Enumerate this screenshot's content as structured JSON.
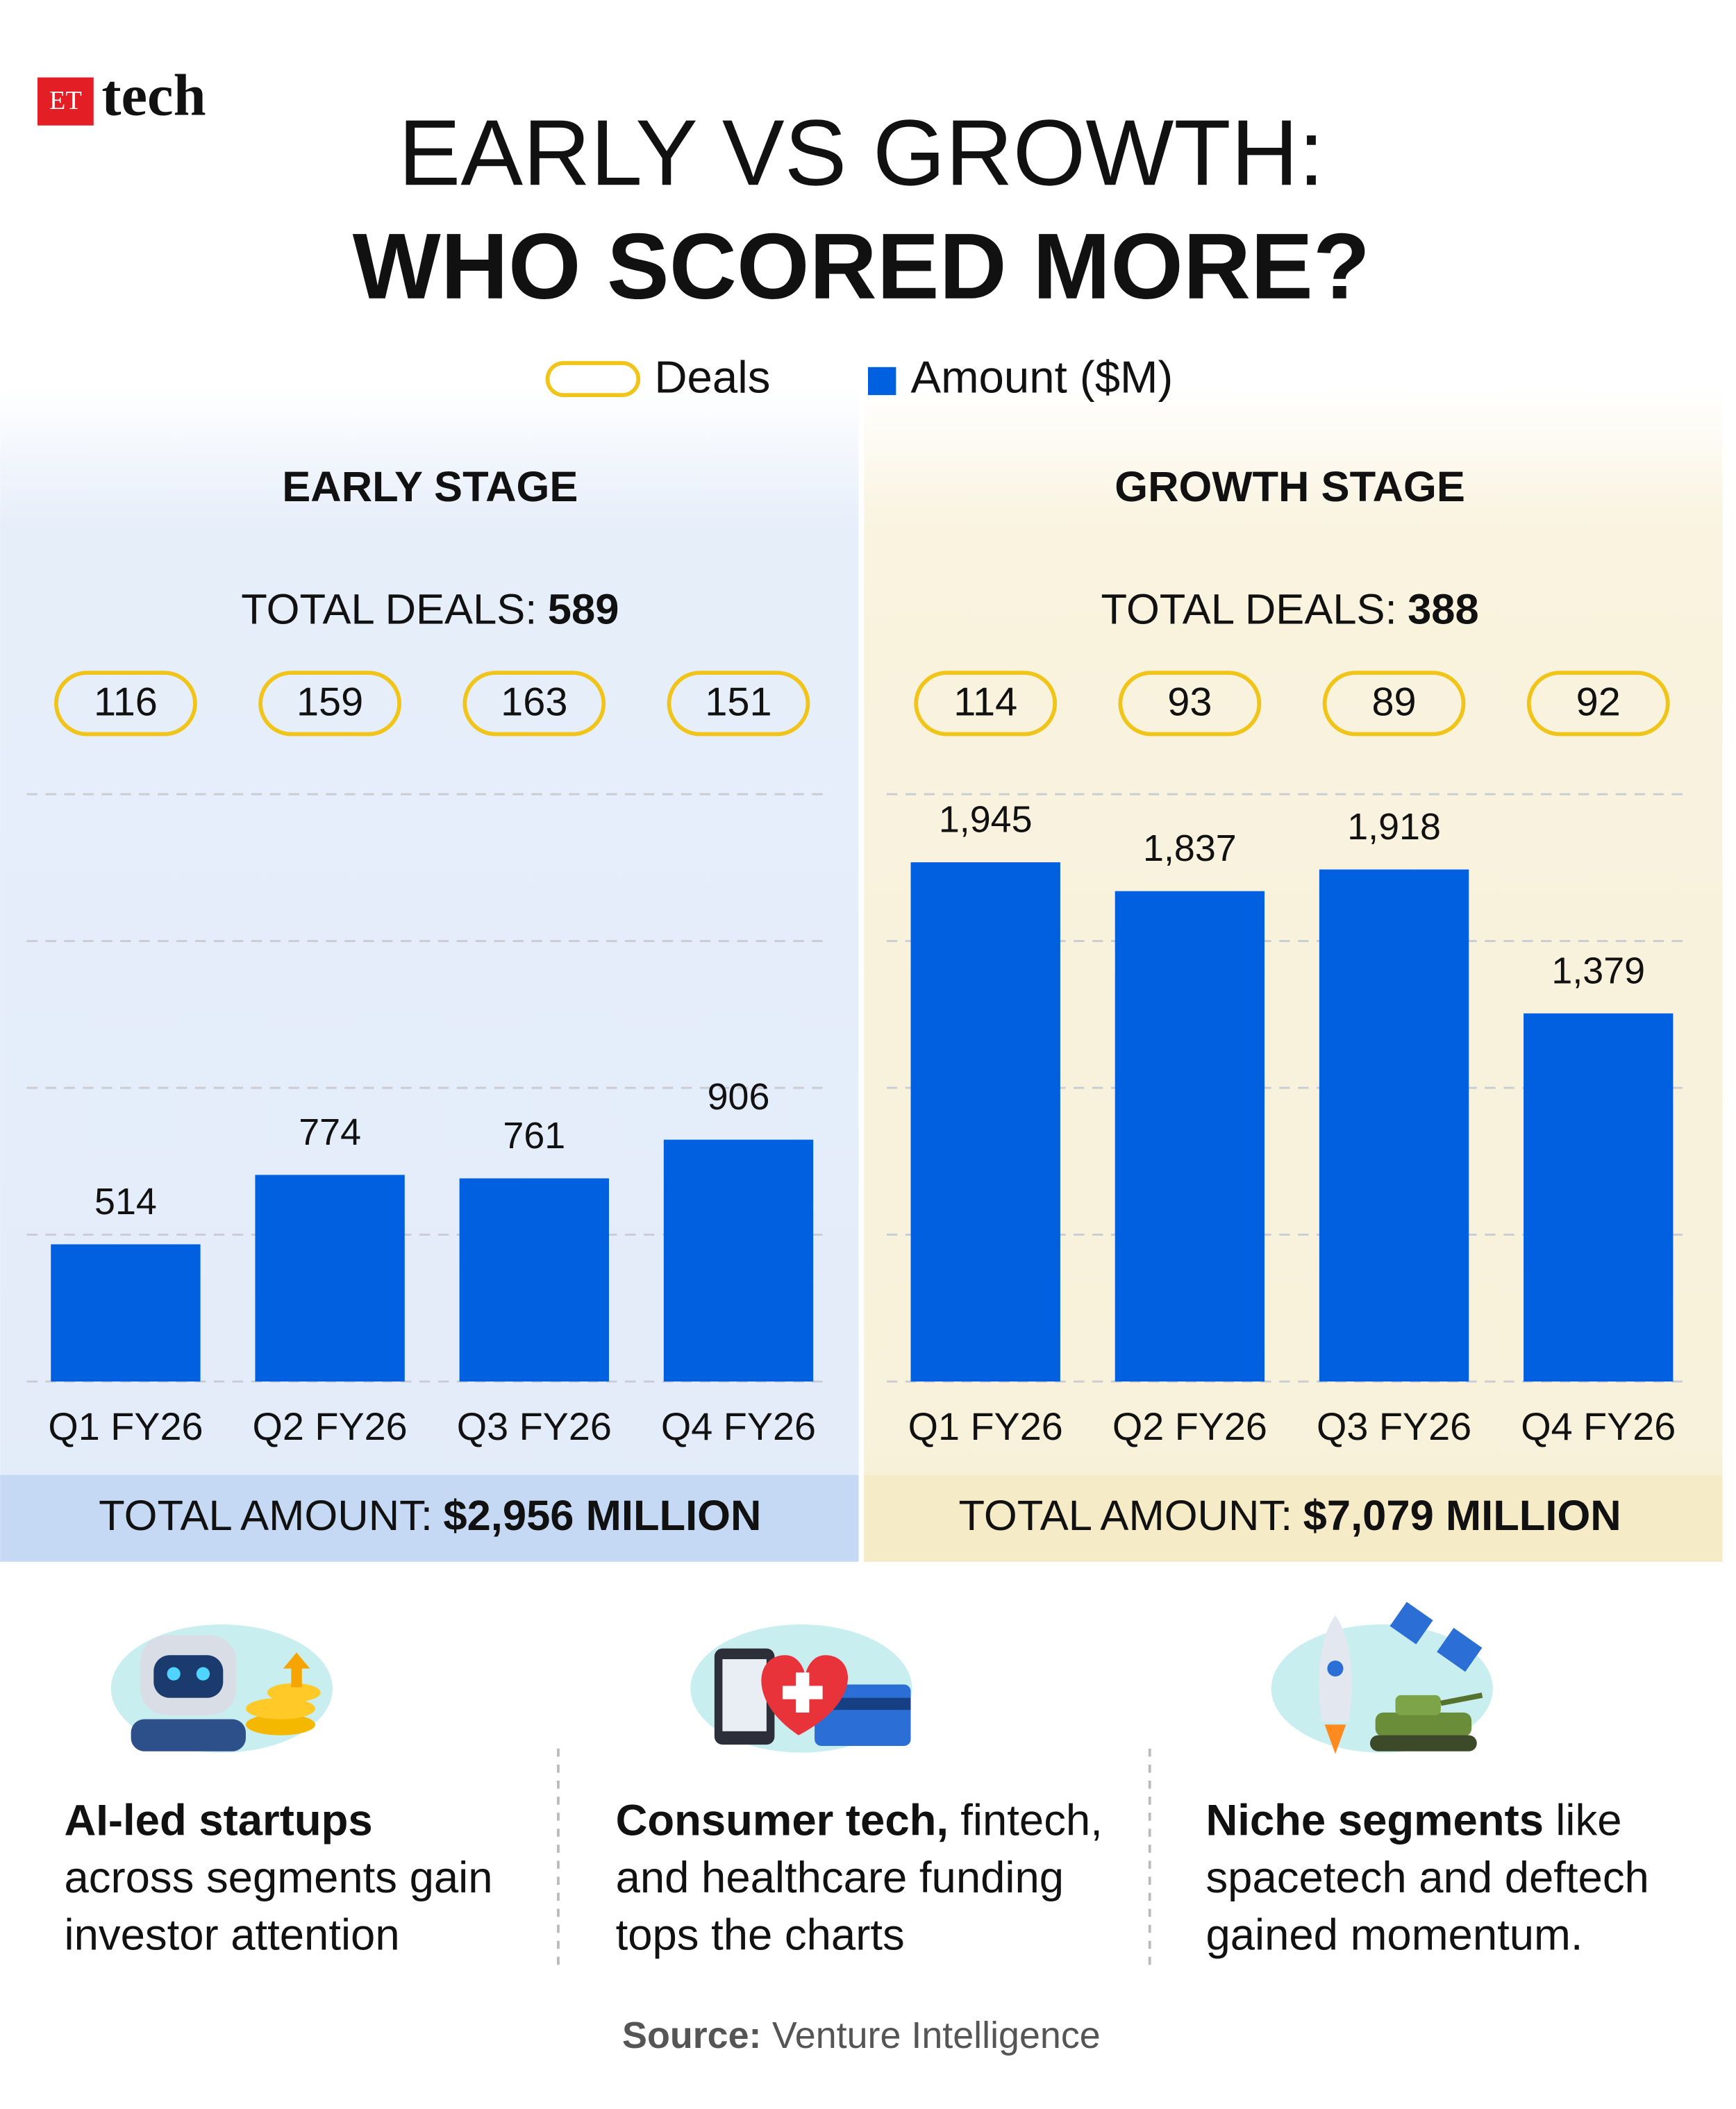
{
  "header": {
    "brand_badge": "ET",
    "brand": "tech",
    "title_line1": "EARLY VS GROWTH:",
    "title_line2": "WHO SCORED MORE?"
  },
  "chart_data": [
    {
      "type": "bar",
      "title": "EARLY STAGE",
      "total_deals_label": "TOTAL DEALS:",
      "total_deals": 589,
      "total_amount_label": "TOTAL AMOUNT:",
      "total_amount": "$2,956 MILLION",
      "categories": [
        "Q1 FY26",
        "Q2 FY26",
        "Q3 FY26",
        "Q4 FY26"
      ],
      "series": [
        {
          "name": "Deals",
          "color": "#f0c419",
          "values": [
            116,
            159,
            163,
            151
          ]
        },
        {
          "name": "Amount ($M)",
          "color": "#0060df",
          "values": [
            514,
            774,
            761,
            906
          ]
        }
      ],
      "ylim": [
        0,
        2200
      ],
      "yticks": [
        0,
        550,
        1100,
        1650,
        2200
      ],
      "grid": true
    },
    {
      "type": "bar",
      "title": "GROWTH STAGE",
      "total_deals_label": "TOTAL DEALS:",
      "total_deals": 388,
      "total_amount_label": "TOTAL AMOUNT:",
      "total_amount": "$7,079 MILLION",
      "categories": [
        "Q1 FY26",
        "Q2 FY26",
        "Q3 FY26",
        "Q4 FY26"
      ],
      "series": [
        {
          "name": "Deals",
          "color": "#f0c419",
          "values": [
            114,
            93,
            89,
            92
          ]
        },
        {
          "name": "Amount ($M)",
          "color": "#0060df",
          "values": [
            1945,
            1837,
            1918,
            1379
          ],
          "value_labels": [
            "1,945",
            "1,837",
            "1,918",
            "1,379"
          ]
        }
      ],
      "ylim": [
        0,
        2200
      ],
      "yticks": [
        0,
        550,
        1100,
        1650,
        2200
      ],
      "grid": true
    }
  ],
  "highlights": [
    {
      "bold": "AI-led startups",
      "lines": [
        "across segments gain",
        "investor attention"
      ]
    },
    {
      "bold": "Consumer tech,",
      "after_bold": "fintech,",
      "lines": [
        "and healthcare funding",
        "tops the charts"
      ]
    },
    {
      "bold": "Niche segments",
      "after_bold": "like",
      "lines": [
        "spacetech and deftech",
        "gained momentum."
      ]
    }
  ],
  "source": {
    "label": "Source:",
    "text": "Venture Intelligence"
  }
}
